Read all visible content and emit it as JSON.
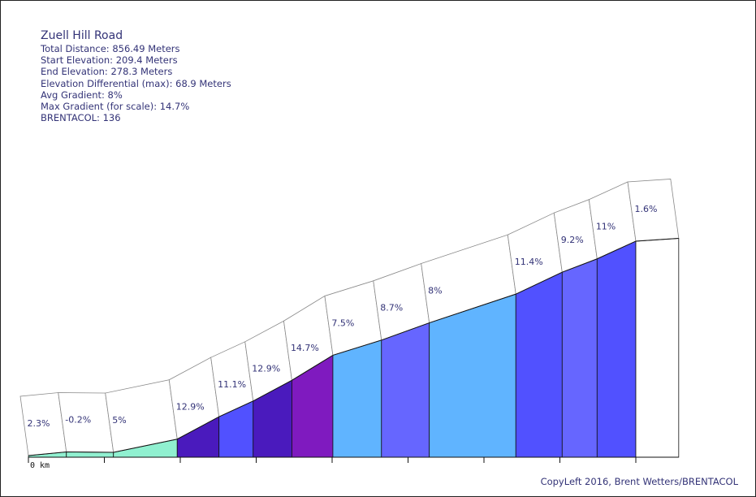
{
  "info": {
    "title": "Zuell Hill Road",
    "total_distance": "Total Distance: 856.49 Meters",
    "start_elevation": "Start Elevation: 209.4 Meters",
    "end_elevation": "End Elevation: 278.3 Meters",
    "elevation_differential": "Elevation Differential (max): 68.9 Meters",
    "avg_gradient": "Avg Gradient: 8%",
    "max_gradient": "Max Gradient (for scale): 14.7%",
    "brentacol": "BRENTACOL: 136"
  },
  "copyleft": "CopyLeft 2016, Brent Wetters/BRENTACOL",
  "chart_data": {
    "type": "area",
    "title": "Zuell Hill Road",
    "xlabel": "",
    "ylabel": "",
    "x_tick_labels": [
      "0 km"
    ],
    "distance_unit": "Meters",
    "total_distance": 856.49,
    "start_elevation": 209.4,
    "end_elevation": 278.3,
    "segments": [
      {
        "start": 0,
        "end": 50,
        "gradient": 2.3,
        "label": "2.3%",
        "color": "#90f0d0"
      },
      {
        "start": 50,
        "end": 112,
        "gradient": -0.2,
        "label": "-0.2%",
        "color": "#90f0d0"
      },
      {
        "start": 112,
        "end": 196,
        "gradient": 5,
        "label": "5%",
        "color": "#90f0d0"
      },
      {
        "start": 196,
        "end": 251,
        "gradient": 12.9,
        "label": "12.9%",
        "color": "#4a1abd"
      },
      {
        "start": 251,
        "end": 296,
        "gradient": 11.1,
        "label": "11.1%",
        "color": "#5151ff"
      },
      {
        "start": 296,
        "end": 347,
        "gradient": 12.9,
        "label": "12.9%",
        "color": "#4a1abd"
      },
      {
        "start": 347,
        "end": 401,
        "gradient": 14.7,
        "label": "14.7%",
        "color": "#7f1abf"
      },
      {
        "start": 401,
        "end": 465,
        "gradient": 7.5,
        "label": "7.5%",
        "color": "#60b4ff"
      },
      {
        "start": 465,
        "end": 528,
        "gradient": 8.7,
        "label": "8.7%",
        "color": "#6666ff"
      },
      {
        "start": 528,
        "end": 642,
        "gradient": 8,
        "label": "8%",
        "color": "#60b4ff"
      },
      {
        "start": 642,
        "end": 703,
        "gradient": 11.4,
        "label": "11.4%",
        "color": "#5151ff"
      },
      {
        "start": 703,
        "end": 749,
        "gradient": 9.2,
        "label": "9.2%",
        "color": "#6666ff"
      },
      {
        "start": 749,
        "end": 800,
        "gradient": 11,
        "label": "11%",
        "color": "#5151ff"
      },
      {
        "start": 800,
        "end": 856.49,
        "gradient": 1.6,
        "label": "1.6%",
        "color": "#ffffff"
      }
    ]
  }
}
